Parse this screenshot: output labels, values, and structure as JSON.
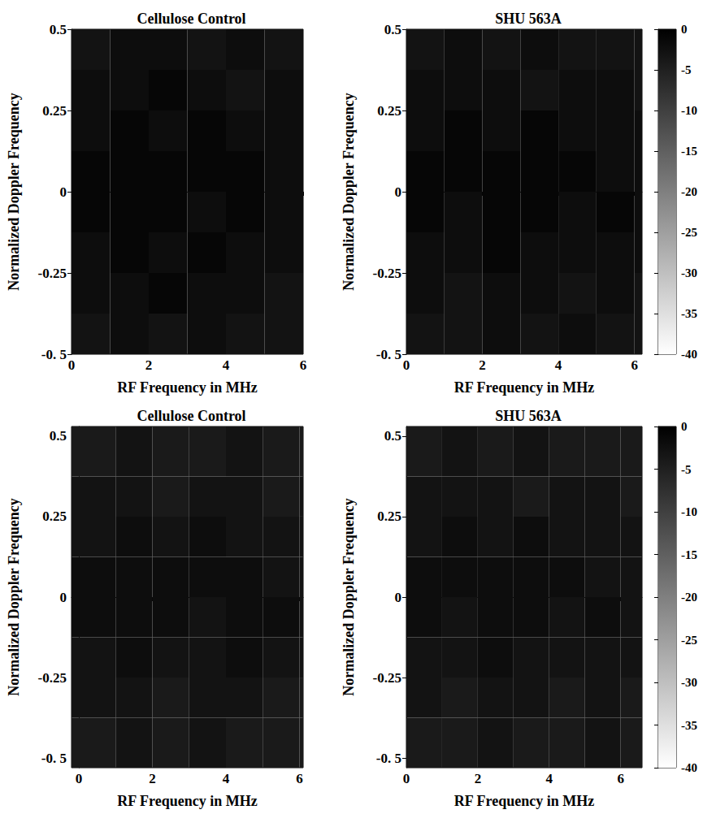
{
  "chart_data": [
    {
      "type": "heatmap",
      "title": "Cellulose Control",
      "x_label": "RF Frequency in MHz",
      "y_label": "Normalized Doppler Frequency",
      "xlim": [
        0,
        6
      ],
      "xticks": [
        0,
        2,
        4,
        6
      ],
      "ylim": [
        -0.5,
        0.5
      ],
      "yticks": [
        {
          "value": -0.5,
          "label": "-0. 5"
        },
        -0.25,
        0,
        0.25,
        0.5
      ],
      "x_edges": [
        0,
        1,
        2,
        3,
        4,
        5,
        6
      ],
      "y_edges": [
        -0.5,
        -0.375,
        -0.25,
        -0.125,
        0,
        0.125,
        0.25,
        0.375,
        0.5
      ],
      "cells": [
        [
          -3,
          -2,
          -3,
          -2,
          -3,
          -3
        ],
        [
          -2,
          -2,
          -1,
          -2,
          -2,
          -3
        ],
        [
          -2,
          -1,
          -2,
          -1,
          -2,
          -2
        ],
        [
          -1,
          -1,
          -1,
          -2,
          -1,
          -2
        ],
        [
          -1,
          -1,
          -1,
          -1,
          -1,
          -2
        ],
        [
          -2,
          -1,
          -2,
          -1,
          -2,
          -2
        ],
        [
          -2,
          -2,
          -1,
          -2,
          -3,
          -2
        ],
        [
          -3,
          -2,
          -2,
          -3,
          -2,
          -3
        ]
      ]
    },
    {
      "type": "heatmap",
      "title": "SHU 563A",
      "x_label": "RF Frequency in MHz",
      "y_label": "Normalized Doppler Frequency",
      "xlim": [
        0,
        6.2
      ],
      "xticks": [
        0,
        2,
        4,
        6
      ],
      "ylim": [
        -0.5,
        0.5
      ],
      "yticks": [
        {
          "value": -0.5,
          "label": "-0. 5"
        },
        -0.25,
        0,
        0.25,
        0.5
      ],
      "x_edges": [
        0,
        1,
        2,
        3,
        4,
        5,
        6,
        6.2
      ],
      "y_edges": [
        -0.5,
        -0.375,
        -0.25,
        -0.125,
        0,
        0.125,
        0.25,
        0.375,
        0.5
      ],
      "cells": [
        [
          -3,
          -3,
          -2,
          -3,
          -2,
          -3,
          -3
        ],
        [
          -2,
          -3,
          -2,
          -2,
          -3,
          -2,
          -3
        ],
        [
          -2,
          -2,
          -1,
          -2,
          -2,
          -2,
          -2
        ],
        [
          -1,
          -2,
          -1,
          -1,
          -2,
          -1,
          -2
        ],
        [
          -1,
          -1,
          -1,
          -1,
          -1,
          -2,
          -2
        ],
        [
          -2,
          -1,
          -2,
          -1,
          -2,
          -2,
          -2
        ],
        [
          -2,
          -2,
          -2,
          -3,
          -2,
          -2,
          -3
        ],
        [
          -3,
          -2,
          -3,
          -2,
          -3,
          -3,
          -3
        ]
      ],
      "colorbar": {
        "range": [
          -40,
          0
        ],
        "ticks": [
          -40,
          -35,
          -30,
          -25,
          -20,
          -15,
          -10,
          -5,
          0
        ]
      }
    },
    {
      "type": "heatmap",
      "title": "Cellulose Control",
      "x_label": "RF Frequency in MHz",
      "y_label": "Normalized Doppler Frequency",
      "xlim": [
        -0.2,
        6.1
      ],
      "xticks": [
        0,
        2,
        4,
        6
      ],
      "ylim": [
        -0.53,
        0.53
      ],
      "yticks": [
        {
          "value": -0.5,
          "label": "-0. 5"
        },
        -0.25,
        0,
        0.25,
        0.5
      ],
      "x_edges": [
        -0.2,
        1,
        2,
        3,
        4,
        5,
        6,
        6.1
      ],
      "y_edges": [
        -0.53,
        -0.375,
        -0.25,
        -0.125,
        0,
        0.125,
        0.25,
        0.375,
        0.53
      ],
      "cells": [
        [
          -4,
          -3,
          -4,
          -3,
          -4,
          -4,
          -4
        ],
        [
          -3,
          -3,
          -4,
          -3,
          -3,
          -4,
          -4
        ],
        [
          -3,
          -2,
          -3,
          -3,
          -2,
          -3,
          -3
        ],
        [
          -2,
          -2,
          -2,
          -3,
          -2,
          -2,
          -3
        ],
        [
          -2,
          -2,
          -2,
          -2,
          -2,
          -3,
          -3
        ],
        [
          -3,
          -2,
          -3,
          -2,
          -3,
          -3,
          -3
        ],
        [
          -3,
          -3,
          -4,
          -3,
          -3,
          -4,
          -3
        ],
        [
          -4,
          -3,
          -4,
          -4,
          -3,
          -4,
          -4
        ]
      ]
    },
    {
      "type": "heatmap",
      "title": "SHU 563A",
      "x_label": "RF Frequency in MHz",
      "y_label": "Normalized Doppler Frequency",
      "xlim": [
        0,
        6.6
      ],
      "xticks": [
        0,
        2,
        4,
        6
      ],
      "ylim": [
        -0.53,
        0.53
      ],
      "yticks": [
        {
          "value": -0.5,
          "label": "-0. 5"
        },
        -0.25,
        0,
        0.25,
        0.5
      ],
      "x_edges": [
        0,
        1,
        2,
        3,
        4,
        5,
        6,
        6.6
      ],
      "y_edges": [
        -0.53,
        -0.375,
        -0.25,
        -0.125,
        0,
        0.125,
        0.25,
        0.375,
        0.53
      ],
      "cells": [
        [
          -4,
          -4,
          -3,
          -4,
          -4,
          -3,
          -4
        ],
        [
          -3,
          -4,
          -3,
          -3,
          -4,
          -3,
          -4
        ],
        [
          -3,
          -3,
          -2,
          -3,
          -3,
          -3,
          -3
        ],
        [
          -2,
          -3,
          -2,
          -2,
          -3,
          -2,
          -3
        ],
        [
          -2,
          -2,
          -2,
          -2,
          -2,
          -3,
          -3
        ],
        [
          -3,
          -2,
          -3,
          -2,
          -3,
          -3,
          -3
        ],
        [
          -3,
          -3,
          -3,
          -4,
          -3,
          -3,
          -4
        ],
        [
          -4,
          -3,
          -4,
          -3,
          -4,
          -4,
          -4
        ]
      ],
      "colorbar": {
        "range": [
          -40,
          0
        ],
        "ticks": [
          -40,
          -35,
          -30,
          -25,
          -20,
          -15,
          -10,
          -5,
          0
        ]
      }
    }
  ]
}
